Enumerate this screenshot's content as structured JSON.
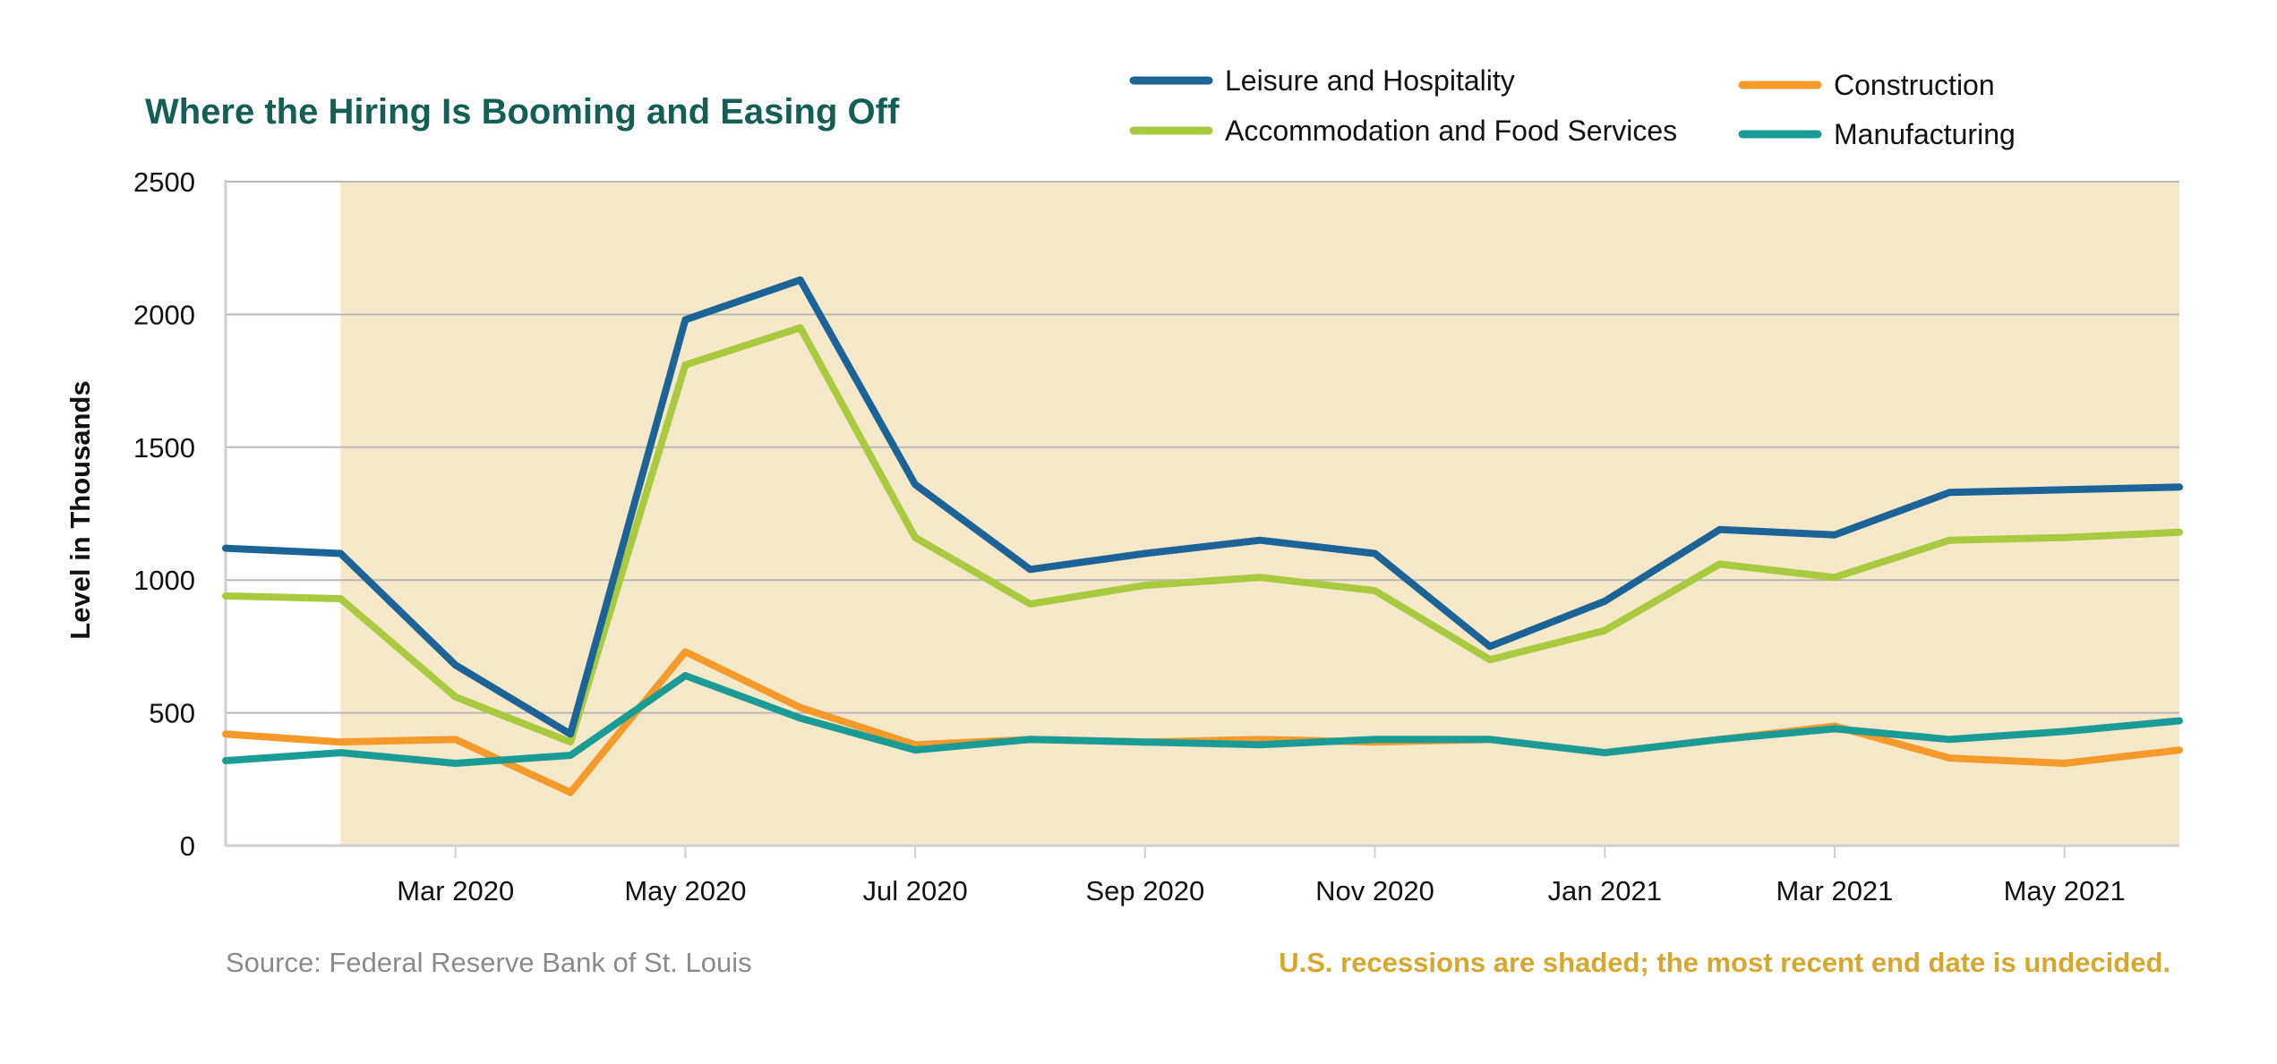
{
  "chart_data": {
    "type": "line",
    "title": "Where the Hiring Is Booming and Easing Off",
    "ylabel": "Level in Thousands",
    "xlabel": "",
    "ylim": [
      0,
      2500
    ],
    "yticks": [
      0,
      500,
      1000,
      1500,
      2000,
      2500
    ],
    "x_tick_labels": [
      "Mar 2020",
      "May 2020",
      "Jul 2020",
      "Sep 2020",
      "Nov 2020",
      "Jan 2021",
      "Mar 2021",
      "May 2021"
    ],
    "x": [
      "2020-01",
      "2020-02",
      "2020-03",
      "2020-04",
      "2020-05",
      "2020-06",
      "2020-07",
      "2020-08",
      "2020-09",
      "2020-10",
      "2020-11",
      "2020-12",
      "2021-01",
      "2021-02",
      "2021-03",
      "2021-04",
      "2021-05",
      "2021-06"
    ],
    "recession_shading": {
      "start": "2020-02",
      "end": "2021-06"
    },
    "grid": true,
    "legend_position": "top-right",
    "series": [
      {
        "name": "Leisure and Hospitality",
        "color": "#1c6397",
        "values": [
          1120,
          1100,
          680,
          420,
          1980,
          2130,
          1360,
          1040,
          1100,
          1150,
          1100,
          750,
          920,
          1190,
          1170,
          1330,
          1340,
          1350
        ]
      },
      {
        "name": "Accommodation and Food Services",
        "color": "#a9c93e",
        "values": [
          940,
          930,
          560,
          390,
          1810,
          1950,
          1160,
          910,
          980,
          1010,
          960,
          700,
          810,
          1060,
          1010,
          1150,
          1160,
          1180
        ]
      },
      {
        "name": "Construction",
        "color": "#f49a2a",
        "values": [
          420,
          390,
          400,
          200,
          730,
          520,
          380,
          400,
          390,
          400,
          390,
          400,
          350,
          400,
          450,
          330,
          310,
          360
        ]
      },
      {
        "name": "Manufacturing",
        "color": "#1a9b96",
        "values": [
          320,
          350,
          310,
          340,
          640,
          480,
          360,
          400,
          390,
          380,
          400,
          400,
          350,
          400,
          440,
          400,
          430,
          470
        ]
      }
    ]
  },
  "colors": {
    "title": "#135f55",
    "shading": "#f4e8c9",
    "grid": "#b8b8b8",
    "axis": "#cfcfcf",
    "source_text": "#8a8a8a",
    "note_text": "#d6a72e"
  },
  "source": "Source: Federal Reserve Bank of St. Louis",
  "note": "U.S. recessions are shaded; the most recent end date is undecided."
}
